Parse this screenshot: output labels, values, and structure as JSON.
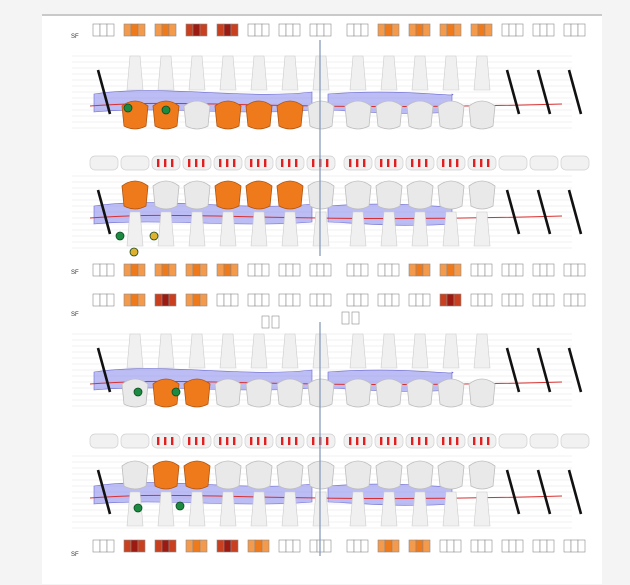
{
  "sections": [
    {
      "id": "upper-arch",
      "sf_label": "SF",
      "title": ""
    },
    {
      "id": "lower-arch",
      "sf_label": "SF",
      "title": ""
    }
  ],
  "colors": {
    "probe_fill": "#9a9af0",
    "probe_stroke": "#6b6bd0",
    "gingival_line": "#d83030",
    "filling": "#ef7a1c",
    "filling_dark": "#9b1b12",
    "bone_marker": "#1c8a40",
    "implant_marker": "#e0b030",
    "missing_tooth_bar": "#111111",
    "midline": "#7f93b3",
    "tooth": "#e9e9e9"
  },
  "row_labels": {
    "sf_top": "SF",
    "sf_mid_a": "SF",
    "sf_mid_b": "SF",
    "sf_bottom": "SF"
  },
  "icons": [
    "tooth-icon",
    "filling-icon",
    "missing-tooth-icon",
    "bone-loss-marker-icon",
    "implant-marker-icon",
    "midline-icon"
  ]
}
